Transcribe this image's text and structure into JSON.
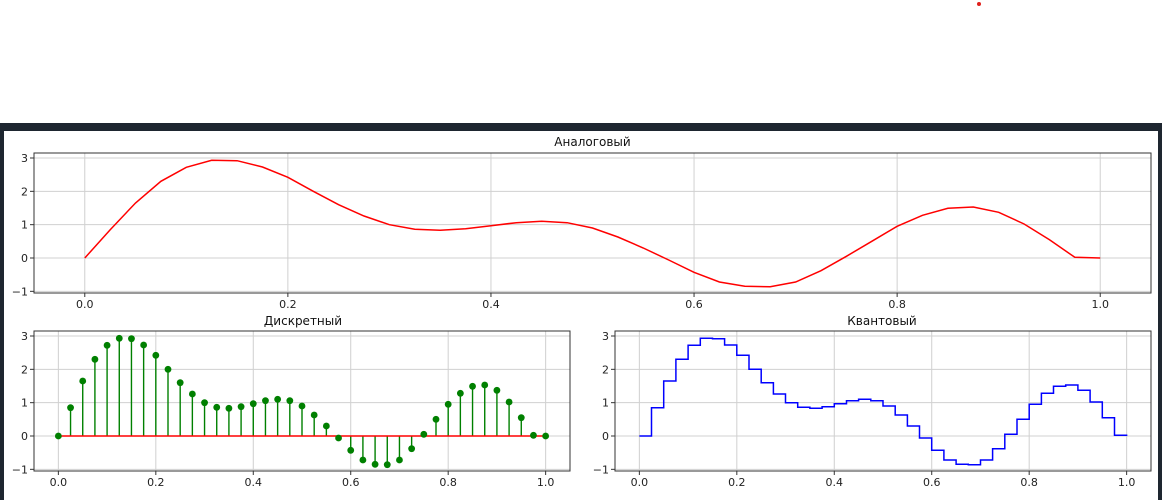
{
  "decoration": {
    "dot_color": "#e0201c",
    "frame_color": "#1e2630"
  },
  "charts": {
    "analog": {
      "title": "Аналоговый",
      "x_ticks": [
        "0.0",
        "0.2",
        "0.4",
        "0.6",
        "0.8",
        "1.0"
      ],
      "y_ticks": [
        "−1",
        "0",
        "1",
        "2",
        "3"
      ]
    },
    "discrete": {
      "title": "Дискретный",
      "x_ticks": [
        "0.0",
        "0.2",
        "0.4",
        "0.6",
        "0.8",
        "1.0"
      ],
      "y_ticks": [
        "−1",
        "0",
        "1",
        "2",
        "3"
      ]
    },
    "quantized": {
      "title": "Квантовый",
      "x_ticks": [
        "0.0",
        "0.2",
        "0.4",
        "0.6",
        "0.8",
        "1.0"
      ],
      "y_ticks": [
        "−1",
        "0",
        "1",
        "2",
        "3"
      ]
    }
  },
  "chart_data": [
    {
      "type": "line",
      "title": "Аналоговый",
      "xlim": [
        -0.05,
        1.05
      ],
      "ylim": [
        -1.05,
        3.15
      ],
      "grid": true,
      "line_color": "#ff0000",
      "x": [
        0.0,
        0.025,
        0.05,
        0.075,
        0.1,
        0.125,
        0.15,
        0.175,
        0.2,
        0.225,
        0.25,
        0.275,
        0.3,
        0.325,
        0.35,
        0.375,
        0.4,
        0.425,
        0.45,
        0.475,
        0.5,
        0.525,
        0.55,
        0.575,
        0.6,
        0.625,
        0.65,
        0.675,
        0.7,
        0.725,
        0.75,
        0.775,
        0.8,
        0.825,
        0.85,
        0.875,
        0.9,
        0.925,
        0.95,
        0.975,
        1.0
      ],
      "y": [
        0.0,
        0.85,
        1.65,
        2.3,
        2.72,
        2.93,
        2.92,
        2.73,
        2.42,
        2.0,
        1.6,
        1.26,
        1.0,
        0.86,
        0.83,
        0.88,
        0.97,
        1.06,
        1.1,
        1.06,
        0.9,
        0.63,
        0.3,
        -0.06,
        -0.43,
        -0.72,
        -0.85,
        -0.86,
        -0.72,
        -0.38,
        0.05,
        0.5,
        0.95,
        1.28,
        1.49,
        1.53,
        1.37,
        1.02,
        0.55,
        0.02,
        0.0
      ]
    },
    {
      "type": "stem",
      "title": "Дискретный",
      "xlim": [
        -0.05,
        1.05
      ],
      "ylim": [
        -1.05,
        3.15
      ],
      "grid": true,
      "marker_color": "#008000",
      "baseline_color": "#ff0000",
      "x": [
        0.0,
        0.025,
        0.05,
        0.075,
        0.1,
        0.125,
        0.15,
        0.175,
        0.2,
        0.225,
        0.25,
        0.275,
        0.3,
        0.325,
        0.35,
        0.375,
        0.4,
        0.425,
        0.45,
        0.475,
        0.5,
        0.525,
        0.55,
        0.575,
        0.6,
        0.625,
        0.65,
        0.675,
        0.7,
        0.725,
        0.75,
        0.775,
        0.8,
        0.825,
        0.85,
        0.875,
        0.9,
        0.925,
        0.95,
        0.975,
        1.0
      ],
      "y": [
        0.0,
        0.85,
        1.65,
        2.3,
        2.72,
        2.93,
        2.92,
        2.73,
        2.42,
        2.0,
        1.6,
        1.26,
        1.0,
        0.86,
        0.83,
        0.88,
        0.97,
        1.06,
        1.1,
        1.06,
        0.9,
        0.63,
        0.3,
        -0.06,
        -0.43,
        -0.72,
        -0.85,
        -0.86,
        -0.72,
        -0.38,
        0.05,
        0.5,
        0.95,
        1.28,
        1.49,
        1.53,
        1.37,
        1.02,
        0.55,
        0.02,
        0.0
      ]
    },
    {
      "type": "step",
      "title": "Квантовый",
      "xlim": [
        -0.05,
        1.05
      ],
      "ylim": [
        -1.05,
        3.15
      ],
      "grid": true,
      "line_color": "#0000ff",
      "x": [
        0.0,
        0.025,
        0.05,
        0.075,
        0.1,
        0.125,
        0.15,
        0.175,
        0.2,
        0.225,
        0.25,
        0.275,
        0.3,
        0.325,
        0.35,
        0.375,
        0.4,
        0.425,
        0.45,
        0.475,
        0.5,
        0.525,
        0.55,
        0.575,
        0.6,
        0.625,
        0.65,
        0.675,
        0.7,
        0.725,
        0.75,
        0.775,
        0.8,
        0.825,
        0.85,
        0.875,
        0.9,
        0.925,
        0.95,
        0.975,
        1.0
      ],
      "y": [
        0.0,
        0.85,
        1.65,
        2.3,
        2.72,
        2.93,
        2.92,
        2.73,
        2.42,
        2.0,
        1.6,
        1.26,
        1.0,
        0.86,
        0.83,
        0.88,
        0.97,
        1.06,
        1.1,
        1.06,
        0.9,
        0.63,
        0.3,
        -0.06,
        -0.43,
        -0.72,
        -0.85,
        -0.86,
        -0.72,
        -0.38,
        0.05,
        0.5,
        0.95,
        1.28,
        1.49,
        1.53,
        1.37,
        1.02,
        0.55,
        0.02,
        0.0
      ]
    }
  ]
}
